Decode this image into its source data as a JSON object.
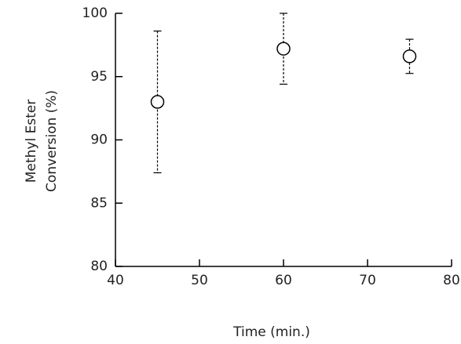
{
  "chart_data": {
    "type": "errorbar-scatter",
    "xlabel": "Time (min.)",
    "ylabel": [
      "Methyl Ester",
      "Conversion (%)"
    ],
    "x": [
      45,
      60,
      75
    ],
    "values": [
      93.0,
      97.2,
      96.6
    ],
    "errors": [
      5.6,
      2.8,
      1.35
    ],
    "xlim": [
      40,
      80
    ],
    "xticks": [
      40,
      50,
      60,
      70,
      80
    ],
    "ylim": [
      80,
      100
    ],
    "yticks": [
      80,
      85,
      90,
      95,
      100
    ],
    "color": "#000000"
  }
}
